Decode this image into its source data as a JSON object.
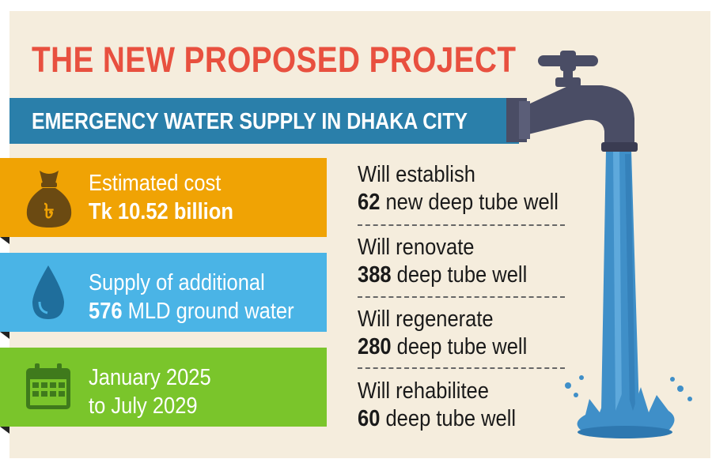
{
  "title": "THE NEW PROPOSED PROJECT",
  "subtitle": "EMERGENCY WATER SUPPLY IN DHAKA CITY",
  "cards": [
    {
      "line1": "Estimated cost",
      "line2": "Tk 10.52 billion",
      "icon": "money-bag-icon",
      "color": "#f0a304"
    },
    {
      "line1": "Supply of additional",
      "line2_bold": "576",
      "line2_rest": " MLD ground water",
      "icon": "water-drop-icon",
      "color": "#4ab4e6"
    },
    {
      "line1": "January 2025",
      "line2": "to July 2029",
      "icon": "calendar-icon",
      "color": "#7ac52b"
    }
  ],
  "stats": [
    {
      "line1": "Will establish",
      "number": "62",
      "rest": " new deep tube well"
    },
    {
      "line1": "Will renovate",
      "number": "388",
      "rest": " deep tube well"
    },
    {
      "line1": "Will regenerate",
      "number": "280",
      "rest": " deep tube well"
    },
    {
      "line1": "Will rehabilitee",
      "number": "60",
      "rest": " deep tube well"
    }
  ],
  "colors": {
    "title": "#e8503f",
    "banner": "#2a7faa",
    "background": "#f5eddd",
    "water": "#3f8fc8",
    "tap": "#4a4d65"
  },
  "illustration": "water-tap-icon"
}
